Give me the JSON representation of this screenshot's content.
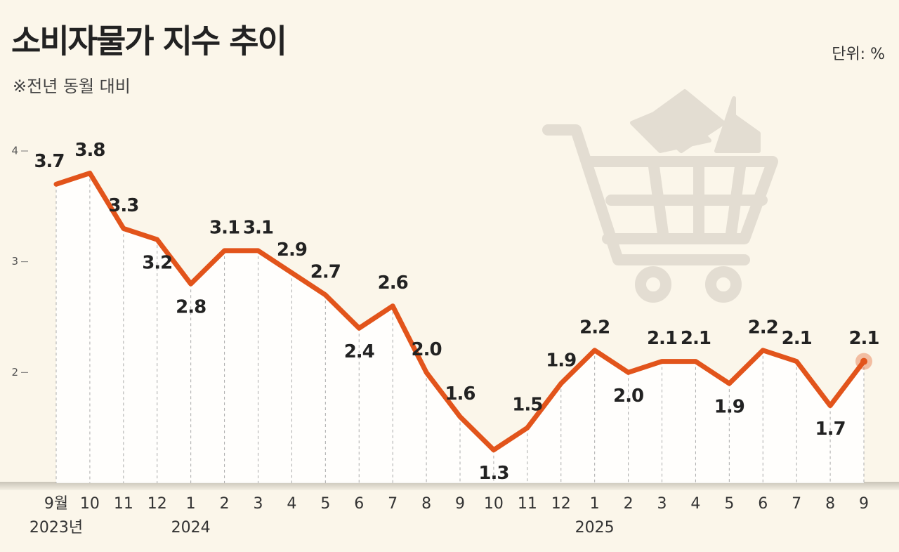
{
  "chart_data": {
    "type": "line",
    "title": "소비자물가 지수 추이",
    "subtitle": "※전년 동월 대비",
    "unit": "단위: %",
    "categories": [
      "9월",
      "10",
      "11",
      "12",
      "1",
      "2",
      "3",
      "4",
      "5",
      "6",
      "7",
      "8",
      "9",
      "10",
      "11",
      "12",
      "1",
      "2",
      "3",
      "4",
      "5",
      "6",
      "7",
      "8",
      "9"
    ],
    "x_groups": [
      {
        "label": "2023년",
        "at": 0
      },
      {
        "label": "2024",
        "at": 4
      },
      {
        "label": "2025",
        "at": 16
      }
    ],
    "series": [
      {
        "name": "소비자물가 지수",
        "color": "#e2541b",
        "values": [
          3.7,
          3.8,
          3.3,
          3.2,
          2.8,
          3.1,
          3.1,
          2.9,
          2.7,
          2.4,
          2.6,
          2.0,
          1.6,
          1.3,
          1.5,
          1.9,
          2.2,
          2.0,
          2.1,
          2.1,
          1.9,
          2.2,
          2.1,
          1.7,
          2.1
        ],
        "value_labels": [
          "3.7",
          "3.8",
          "3.3",
          "3.2",
          "2.8",
          "3.1",
          "3.1",
          "2.9",
          "2.7",
          "2.4",
          "2.6",
          "2.0",
          "1.6",
          "1.3",
          "1.5",
          "1.9",
          "2.2",
          "2.0",
          "2.1",
          "2.1",
          "1.9",
          "2.2",
          "2.1",
          "1.7",
          "2.1"
        ]
      }
    ],
    "ylim": [
      1,
      4
    ],
    "yticks": [
      2,
      3,
      4
    ]
  }
}
